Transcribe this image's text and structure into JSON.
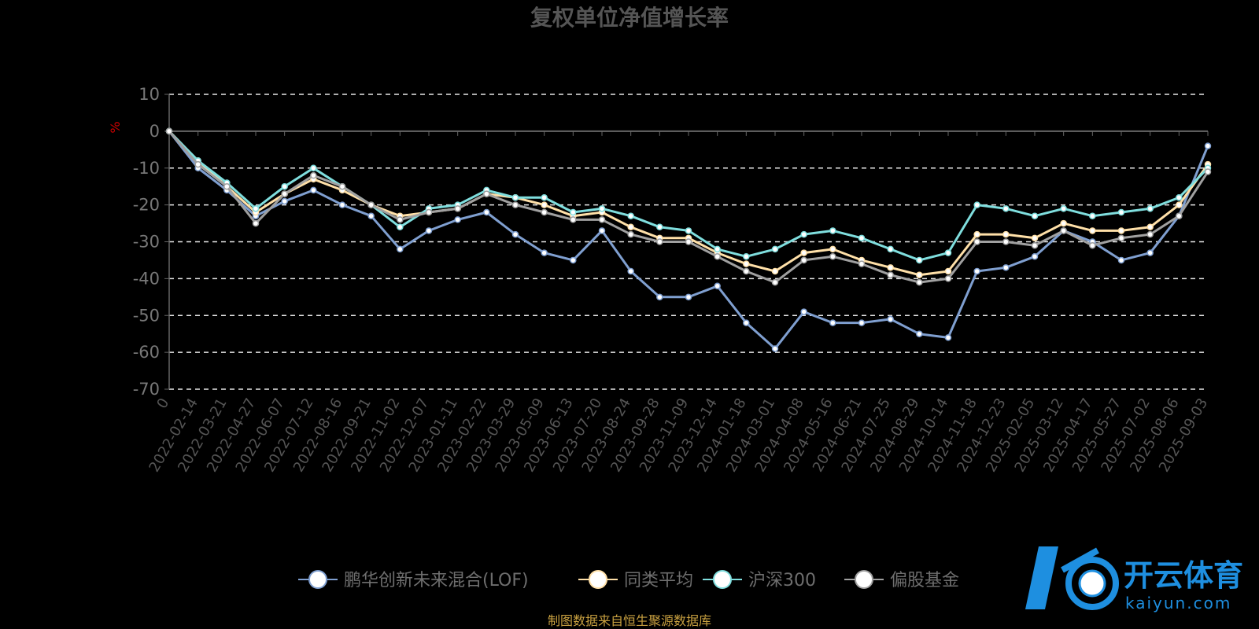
{
  "chart_data": {
    "type": "line",
    "title": "复权单位净值增长率",
    "ylabel": "%",
    "ylim": [
      -70,
      10
    ],
    "yticks": [
      10,
      0,
      -10,
      -20,
      -30,
      -40,
      -50,
      -60,
      -70
    ],
    "grid": true,
    "legend_position": "bottom-center",
    "x": [
      "0",
      "2022-02-14",
      "2022-03-21",
      "2022-04-27",
      "2022-06-07",
      "2022-07-12",
      "2022-08-16",
      "2022-09-21",
      "2022-11-02",
      "2022-12-07",
      "2023-01-11",
      "2023-02-22",
      "2023-03-29",
      "2023-05-09",
      "2023-06-13",
      "2023-07-20",
      "2023-08-24",
      "2023-09-28",
      "2023-11-09",
      "2023-12-14",
      "2024-01-18",
      "2024-03-01",
      "2024-04-08",
      "2024-05-16",
      "2024-06-21",
      "2024-07-25",
      "2024-08-29",
      "2024-10-14",
      "2024-11-18",
      "2024-12-23",
      "2025-02-05",
      "2025-03-12",
      "2025-04-17",
      "2025-05-27",
      "2025-07-02",
      "2025-08-06",
      "2025-09-03"
    ],
    "series": [
      {
        "name": "鹏华创新未来混合(LOF)",
        "color": "#7f9fd0",
        "values": [
          0,
          -10,
          -16,
          -23,
          -19,
          -16,
          -20,
          -23,
          -32,
          -27,
          -24,
          -22,
          -28,
          -33,
          -35,
          -27,
          -38,
          -45,
          -45,
          -42,
          -52,
          -59,
          -49,
          -52,
          -52,
          -51,
          -55,
          -56,
          -38,
          -37,
          -34,
          -27,
          -30,
          -35,
          -33,
          -23,
          -4
        ]
      },
      {
        "name": "同类平均",
        "color": "#ffe0a8",
        "values": [
          0,
          -8,
          -15,
          -22,
          -17,
          -13,
          -16,
          -20,
          -23,
          -22,
          -21,
          -17,
          -18,
          -20,
          -23,
          -22,
          -26,
          -29,
          -29,
          -33,
          -36,
          -38,
          -33,
          -32,
          -35,
          -37,
          -39,
          -38,
          -28,
          -28,
          -29,
          -25,
          -27,
          -27,
          -26,
          -20,
          -9
        ]
      },
      {
        "name": "沪深300",
        "color": "#7fdede",
        "values": [
          0,
          -8,
          -14,
          -21,
          -15,
          -10,
          -15,
          -20,
          -26,
          -21,
          -20,
          -16,
          -18,
          -18,
          -22,
          -21,
          -23,
          -26,
          -27,
          -32,
          -34,
          -32,
          -28,
          -27,
          -29,
          -32,
          -35,
          -33,
          -20,
          -21,
          -23,
          -21,
          -23,
          -22,
          -21,
          -18,
          -10
        ]
      },
      {
        "name": "偏股基金",
        "color": "#a0a0a0",
        "values": [
          0,
          -9,
          -15,
          -25,
          -17,
          -12,
          -15,
          -20,
          -24,
          -22,
          -21,
          -17,
          -20,
          -22,
          -24,
          -24,
          -28,
          -30,
          -30,
          -34,
          -38,
          -41,
          -35,
          -34,
          -36,
          -39,
          -41,
          -40,
          -30,
          -30,
          -31,
          -27,
          -31,
          -29,
          -28,
          -23,
          -11
        ]
      }
    ]
  },
  "legend": [
    {
      "label": "鹏华创新未来混合(LOF)",
      "color": "#7f9fd0"
    },
    {
      "label": "同类平均",
      "color": "#ffe0a8"
    },
    {
      "label": "沪深300",
      "color": "#7fdede"
    },
    {
      "label": "偏股基金",
      "color": "#a0a0a0"
    }
  ],
  "footer": {
    "source": "制图数据来自恒生聚源数据库"
  },
  "logo": {
    "text": "开云体育",
    "sub": "kaiyun.com",
    "mark": "K"
  }
}
